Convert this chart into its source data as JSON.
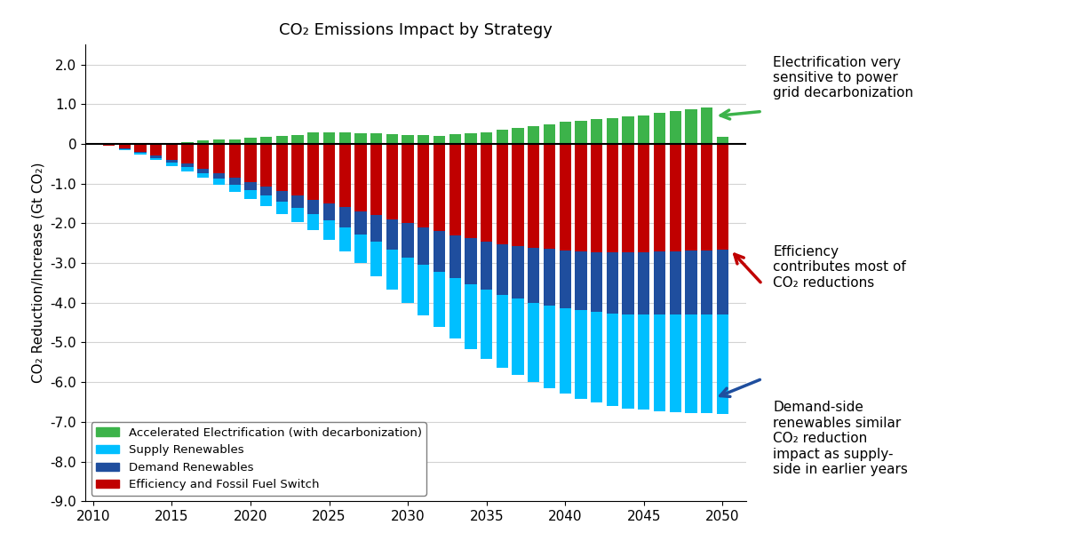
{
  "title": "CO₂ Emissions Impact by Strategy",
  "ylabel": "CO₂ Reduction/Increase (Gt CO₂)",
  "years": [
    2011,
    2012,
    2013,
    2014,
    2015,
    2016,
    2017,
    2018,
    2019,
    2020,
    2021,
    2022,
    2023,
    2024,
    2025,
    2026,
    2027,
    2028,
    2029,
    2030,
    2031,
    2032,
    2033,
    2034,
    2035,
    2036,
    2037,
    2038,
    2039,
    2040,
    2041,
    2042,
    2043,
    2044,
    2045,
    2046,
    2047,
    2048,
    2049,
    2050
  ],
  "electrification": [
    0.0,
    0.0,
    0.0,
    0.0,
    0.02,
    0.05,
    0.08,
    0.1,
    0.12,
    0.15,
    0.17,
    0.2,
    0.22,
    0.28,
    0.3,
    0.28,
    0.27,
    0.26,
    0.25,
    0.23,
    0.22,
    0.21,
    0.25,
    0.27,
    0.29,
    0.35,
    0.4,
    0.45,
    0.5,
    0.55,
    0.58,
    0.62,
    0.65,
    0.7,
    0.72,
    0.78,
    0.82,
    0.87,
    0.92,
    0.18
  ],
  "supply_renewables": [
    0.0,
    -0.02,
    -0.04,
    -0.06,
    -0.08,
    -0.1,
    -0.13,
    -0.16,
    -0.19,
    -0.22,
    -0.26,
    -0.3,
    -0.35,
    -0.42,
    -0.5,
    -0.6,
    -0.72,
    -0.86,
    -1.0,
    -1.15,
    -1.28,
    -1.4,
    -1.52,
    -1.63,
    -1.73,
    -1.83,
    -1.92,
    -2.0,
    -2.08,
    -2.15,
    -2.22,
    -2.28,
    -2.33,
    -2.37,
    -2.4,
    -2.43,
    -2.45,
    -2.47,
    -2.48,
    -2.5
  ],
  "demand_renewables": [
    0.0,
    -0.01,
    -0.03,
    -0.05,
    -0.07,
    -0.09,
    -0.11,
    -0.14,
    -0.17,
    -0.2,
    -0.23,
    -0.27,
    -0.31,
    -0.36,
    -0.42,
    -0.5,
    -0.58,
    -0.67,
    -0.76,
    -0.86,
    -0.94,
    -1.02,
    -1.09,
    -1.16,
    -1.22,
    -1.28,
    -1.33,
    -1.38,
    -1.42,
    -1.46,
    -1.49,
    -1.52,
    -1.54,
    -1.56,
    -1.58,
    -1.59,
    -1.6,
    -1.61,
    -1.62,
    -1.63
  ],
  "efficiency": [
    -0.05,
    -0.12,
    -0.2,
    -0.3,
    -0.4,
    -0.5,
    -0.62,
    -0.74,
    -0.85,
    -0.97,
    -1.08,
    -1.19,
    -1.3,
    -1.4,
    -1.5,
    -1.6,
    -1.7,
    -1.8,
    -1.9,
    -2.0,
    -2.1,
    -2.2,
    -2.3,
    -2.38,
    -2.46,
    -2.52,
    -2.57,
    -2.62,
    -2.65,
    -2.68,
    -2.7,
    -2.72,
    -2.73,
    -2.73,
    -2.72,
    -2.71,
    -2.7,
    -2.69,
    -2.68,
    -2.67
  ],
  "color_electrification": "#3cb34a",
  "color_supply": "#00bfff",
  "color_demand": "#1f4e9e",
  "color_efficiency": "#c00000",
  "ylim": [
    -9.0,
    2.5
  ],
  "yticks": [
    -9.0,
    -8.0,
    -7.0,
    -6.0,
    -5.0,
    -4.0,
    -3.0,
    -2.0,
    -1.0,
    0.0,
    1.0,
    2.0
  ],
  "xticks": [
    2010,
    2015,
    2020,
    2025,
    2030,
    2035,
    2040,
    2045,
    2050
  ],
  "legend_labels": [
    "Accelerated Electrification (with decarbonization)",
    "Supply Renewables",
    "Demand Renewables",
    "Efficiency and Fossil Fuel Switch"
  ],
  "annotation1_text": "Electrification very\nsensitive to power\ngrid decarbonization",
  "annotation2_text": "Efficiency\ncontributes most of\nCO₂ reductions",
  "annotation3_text": "Demand-side\nrenewables similar\nCO₂ reduction\nimpact as supply-\nside in earlier years"
}
